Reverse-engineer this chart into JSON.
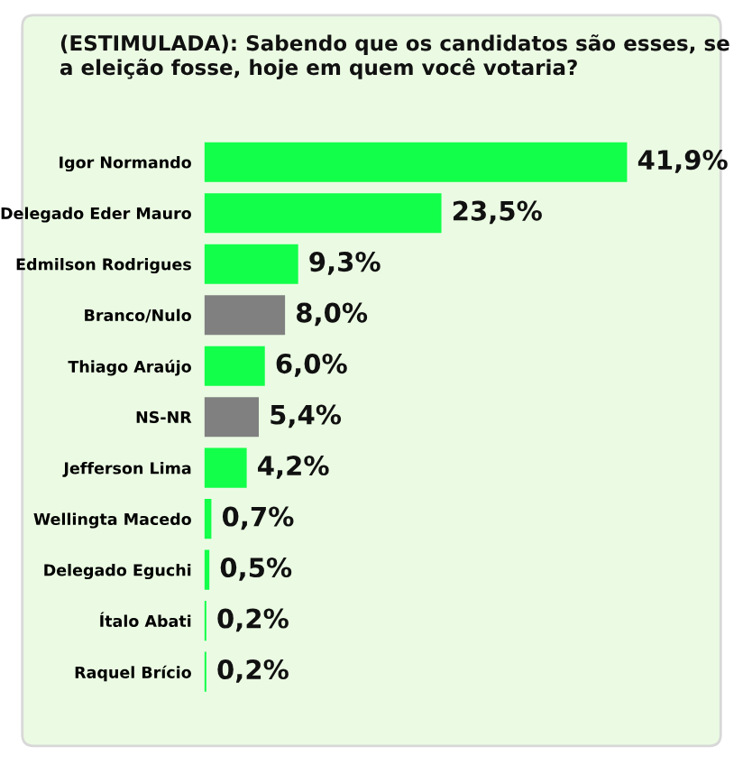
{
  "chart_data": {
    "type": "bar",
    "orientation": "horizontal",
    "title": "(ESTIMULADA): Sabendo que os candidatos são esses, se a eleição fosse, hoje em quem você votaria?",
    "categories": [
      "Igor Normando",
      "Delegado Eder Mauro",
      "Edmilson Rodrigues",
      "Branco/Nulo",
      "Thiago Araújo",
      "NS-NR",
      "Jefferson Lima",
      "Wellingta Macedo",
      "Delegado Eguchi",
      "Ítalo Abati",
      "Raquel Brício"
    ],
    "values": [
      41.9,
      23.5,
      9.3,
      8.0,
      6.0,
      5.4,
      4.2,
      0.7,
      0.5,
      0.2,
      0.2
    ],
    "value_labels": [
      "41,9%",
      "23,5%",
      "9,3%",
      "8,0%",
      "6,0%",
      "5,4%",
      "4,2%",
      "0,7%",
      "0,5%",
      "0,2%",
      "0,2%"
    ],
    "colors": [
      "#12ff4a",
      "#12ff4a",
      "#12ff4a",
      "#808080",
      "#12ff4a",
      "#808080",
      "#12ff4a",
      "#12ff4a",
      "#12ff4a",
      "#12ff4a",
      "#12ff4a"
    ],
    "grid": false,
    "legend": false
  }
}
